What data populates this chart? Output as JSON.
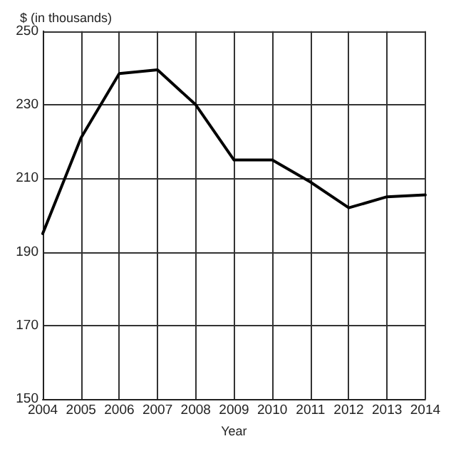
{
  "chart_data": {
    "type": "line",
    "xlabel": "Year",
    "ylabel": "$ (in thousands)",
    "categories": [
      "2004",
      "2005",
      "2006",
      "2007",
      "2008",
      "2009",
      "2010",
      "2011",
      "2012",
      "2013",
      "2014"
    ],
    "series": [
      {
        "color": "#000000",
        "values": [
          195,
          221,
          238.5,
          239.5,
          230,
          215,
          215,
          209,
          202,
          205,
          205.5
        ]
      }
    ],
    "ylim": [
      150,
      250
    ],
    "yticks": [
      150,
      170,
      190,
      210,
      230,
      250
    ],
    "grid": true,
    "marker": "none",
    "line_style": "solid"
  }
}
